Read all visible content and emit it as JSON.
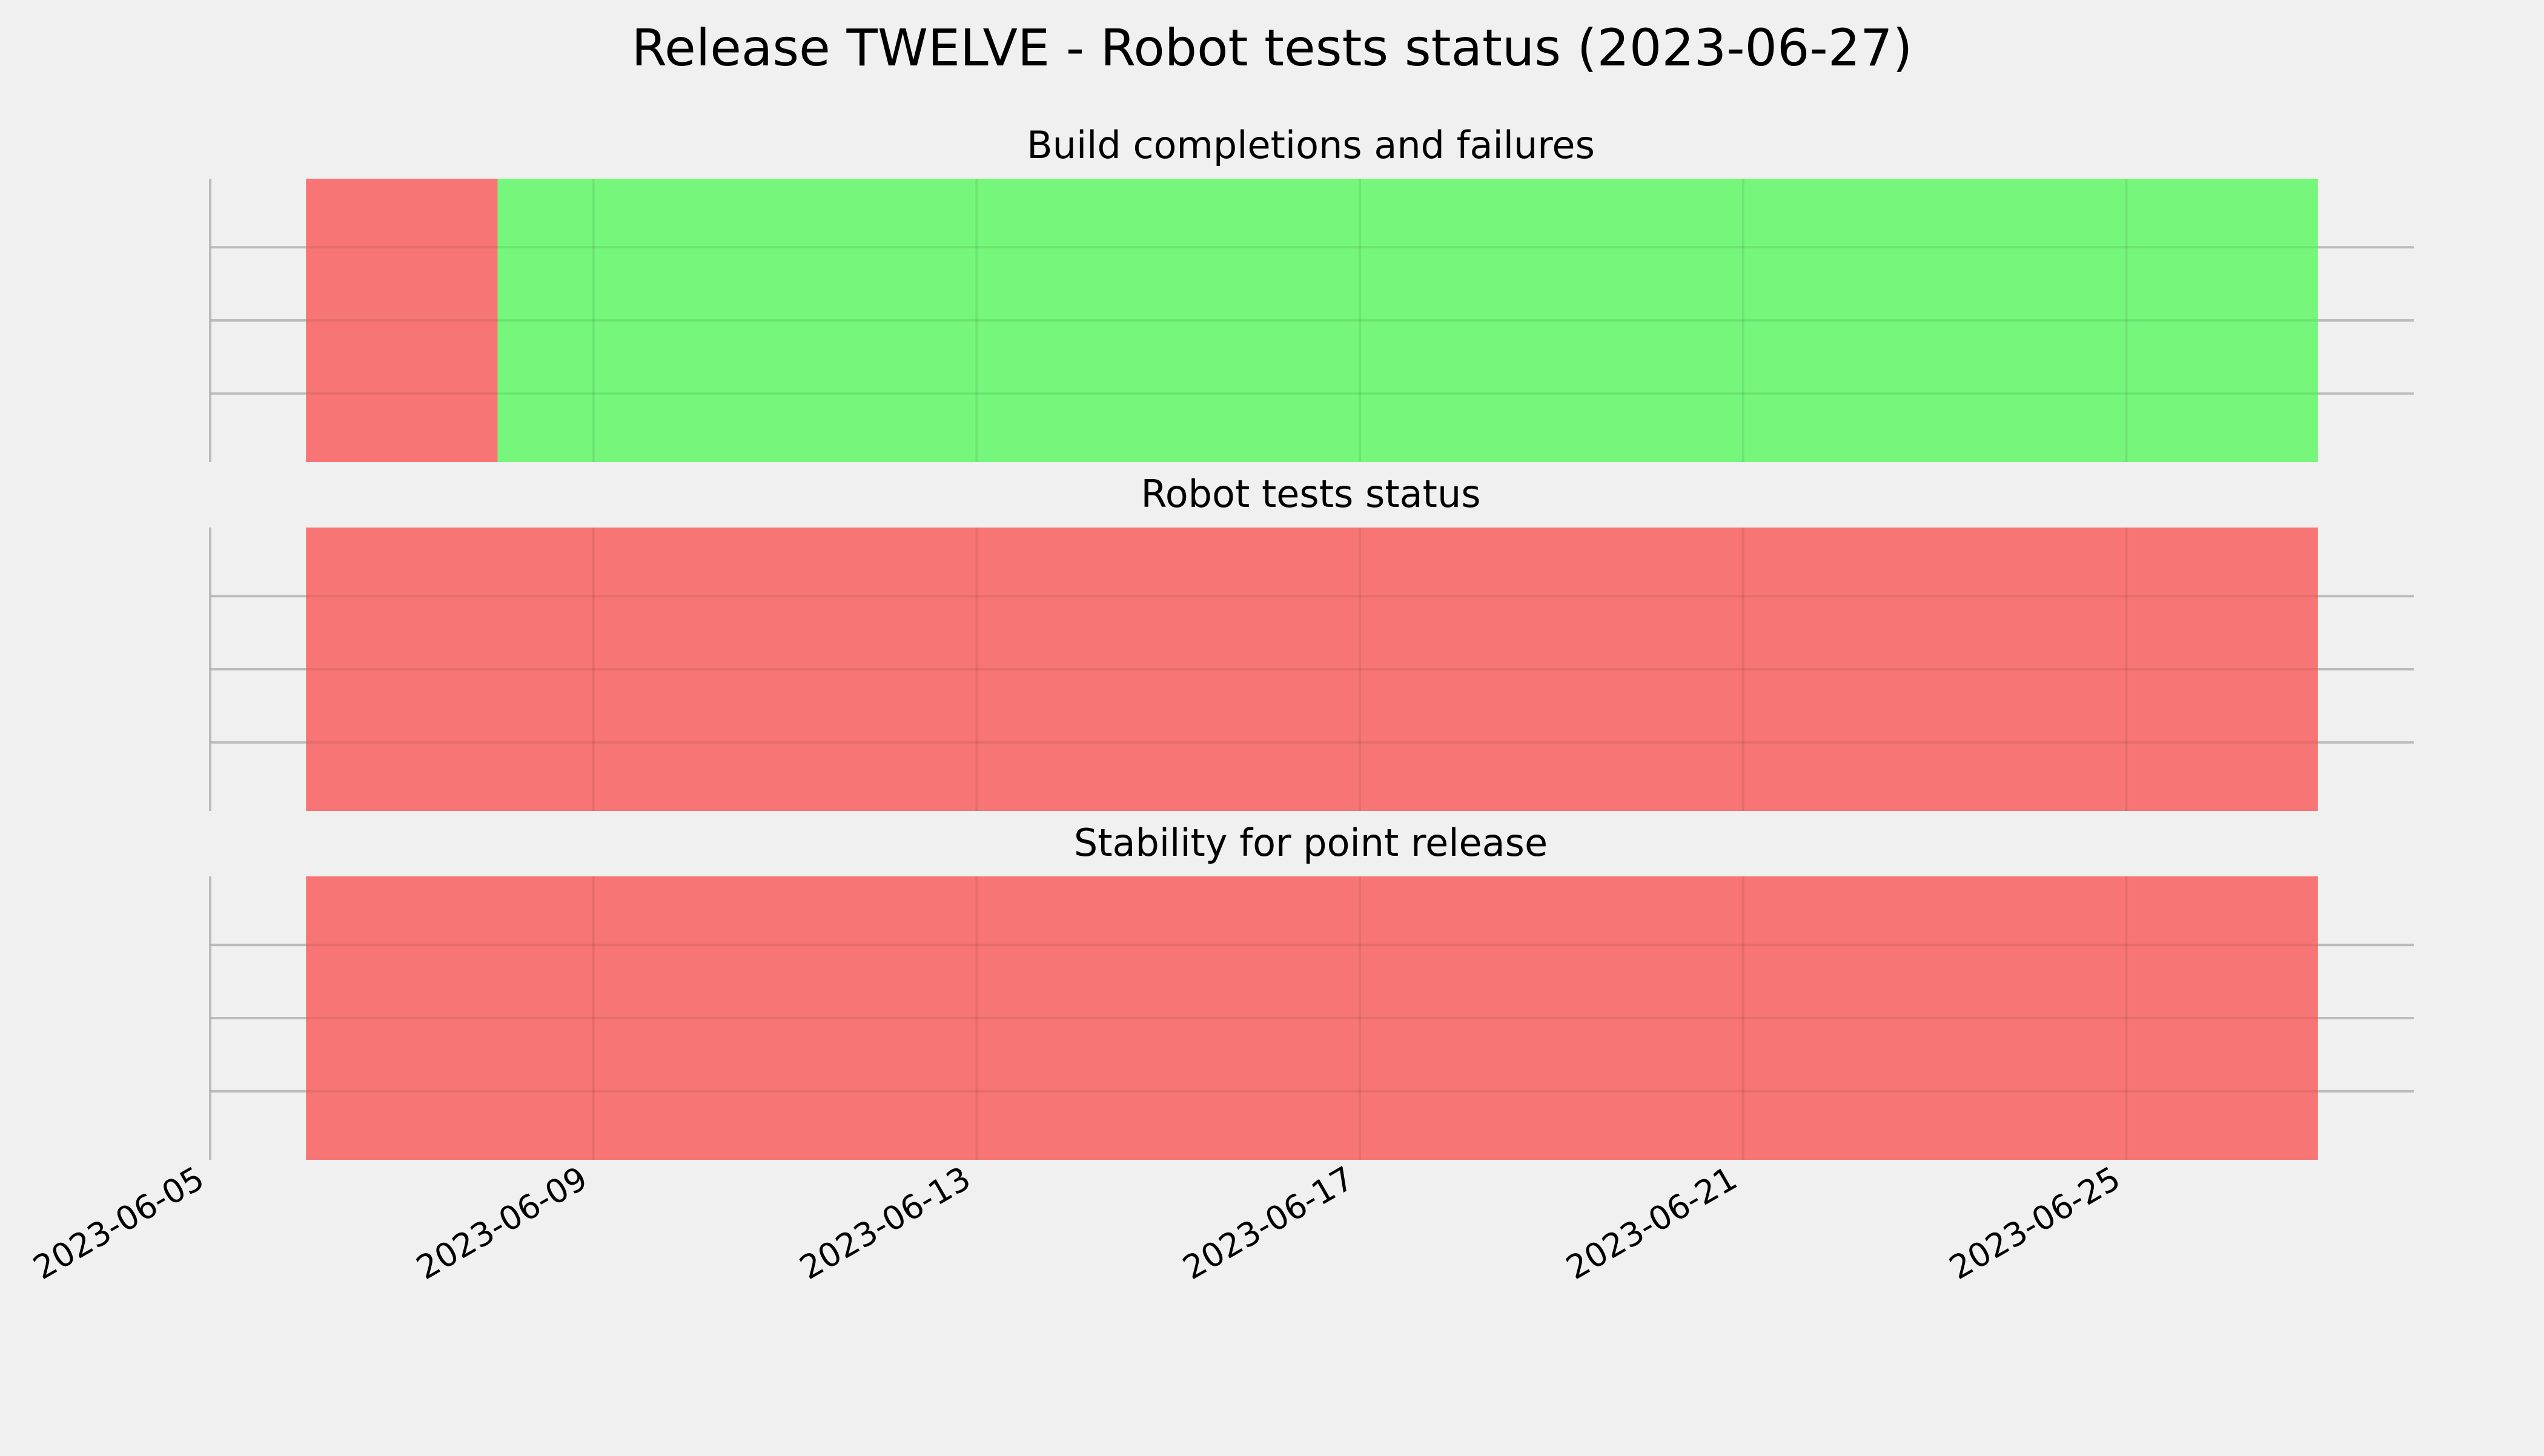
{
  "title": "Release TWELVE - Robot tests status (2023-06-27)",
  "colors": {
    "background": "#f0f0f0",
    "fail": "#f77675",
    "pass": "#76f77b",
    "grid": "#cbcbcb"
  },
  "chart_data": [
    {
      "type": "bar",
      "title": "Build completions and failures",
      "x_axis": {
        "type": "date",
        "range": [
          "2023-06-05",
          "2023-06-28"
        ],
        "ticks_shown": false
      },
      "grid": true,
      "segments": [
        {
          "start": "2023-06-06",
          "end": "2023-06-08",
          "status": "fail"
        },
        {
          "start": "2023-06-08",
          "end": "2023-06-27",
          "status": "pass"
        }
      ]
    },
    {
      "type": "bar",
      "title": "Robot tests status",
      "x_axis": {
        "type": "date",
        "range": [
          "2023-06-05",
          "2023-06-28"
        ],
        "ticks_shown": false
      },
      "grid": true,
      "segments": [
        {
          "start": "2023-06-06",
          "end": "2023-06-27",
          "status": "fail"
        }
      ]
    },
    {
      "type": "bar",
      "title": "Stability for point release",
      "x_axis": {
        "type": "date",
        "range": [
          "2023-06-05",
          "2023-06-28"
        ],
        "ticks": [
          "2023-06-05",
          "2023-06-09",
          "2023-06-13",
          "2023-06-17",
          "2023-06-21",
          "2023-06-25"
        ]
      },
      "grid": true,
      "segments": [
        {
          "start": "2023-06-06",
          "end": "2023-06-27",
          "status": "fail"
        }
      ]
    }
  ]
}
